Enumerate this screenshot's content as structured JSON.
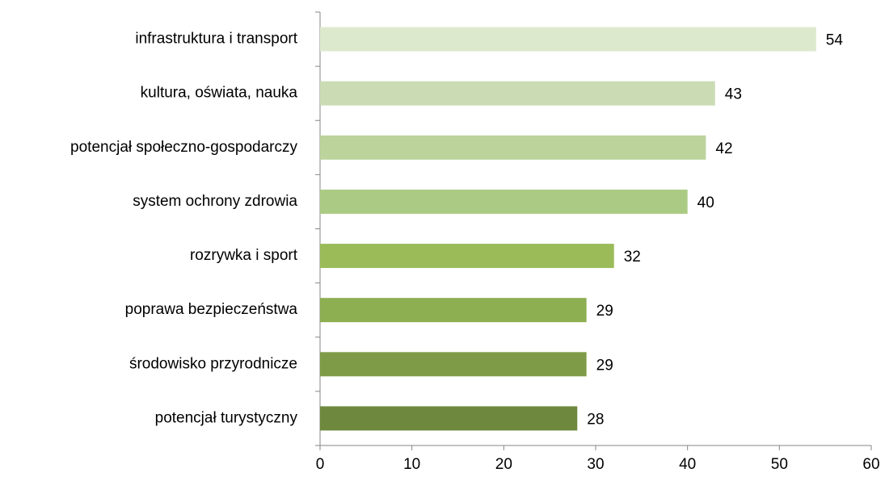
{
  "chart_data": {
    "type": "bar",
    "orientation": "horizontal",
    "categories": [
      "infrastruktura i transport",
      "kultura, oświata, nauka",
      "potencjał społeczno-gospodarczy",
      "system ochrony zdrowia",
      "rozrywka i sport",
      "poprawa bezpieczeństwa",
      "środowisko przyrodnicze",
      "potencjał turystyczny"
    ],
    "values": [
      54,
      43,
      42,
      40,
      32,
      29,
      29,
      28
    ],
    "colors": [
      "#dde9cd",
      "#cbdcb4",
      "#bcd39c",
      "#abca83",
      "#9bbb59",
      "#8dae51",
      "#7e9c47",
      "#6e893d"
    ],
    "xlim": [
      0,
      60
    ],
    "xticks": [
      0,
      10,
      20,
      30,
      40,
      50,
      60
    ],
    "grid": false
  }
}
